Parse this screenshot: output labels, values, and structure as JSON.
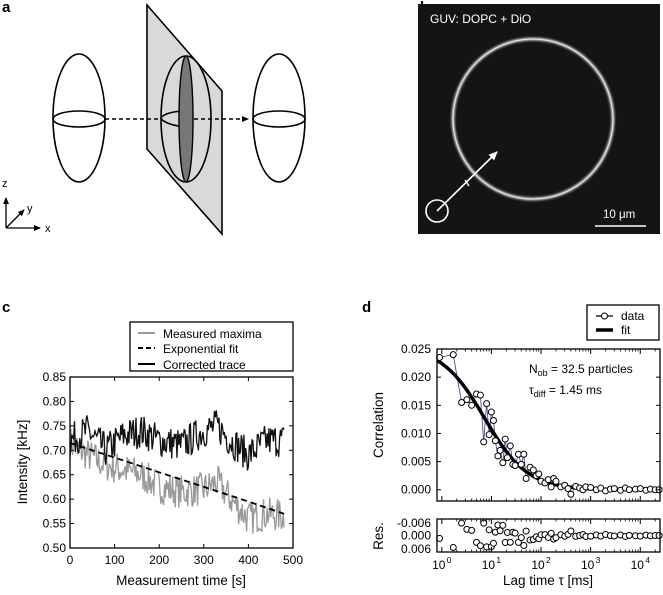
{
  "panels": {
    "a": {
      "label": "a",
      "axes_labels": {
        "z": "z",
        "y": "y",
        "x": "x"
      }
    },
    "b": {
      "label": "b",
      "title": "GUV: DOPC + DiO",
      "scalebar": "10 μm"
    },
    "c": {
      "label": "c"
    },
    "d": {
      "label": "d"
    }
  },
  "chart_data": [
    {
      "id": "c",
      "type": "line",
      "xlabel": "Measurement time [s]",
      "ylabel": "Intensity [kHz]",
      "xlim": [
        0,
        500
      ],
      "ylim": [
        0.5,
        0.85
      ],
      "xticks": [
        0,
        100,
        200,
        300,
        400,
        500
      ],
      "yticks": [
        0.5,
        0.55,
        0.6,
        0.65,
        0.7,
        0.75,
        0.8,
        0.85
      ],
      "xtick_labels": [
        "0",
        "100",
        "200",
        "300",
        "400",
        "500"
      ],
      "ytick_labels": [
        "0.50",
        "0.55",
        "0.60",
        "0.65",
        "0.70",
        "0.75",
        "0.80",
        "0.85"
      ],
      "legend": {
        "placement": "top-right",
        "entries": [
          "Measured maxima",
          "Exponential fit",
          "Corrected trace"
        ]
      },
      "series": [
        {
          "name": "Corrected trace",
          "color": "#111111",
          "style": "solid",
          "mean": 0.725,
          "noise": 0.035,
          "x_range": [
            0,
            480
          ],
          "anchors": [
            [
              0,
              0.72
            ],
            [
              40,
              0.74
            ],
            [
              80,
              0.7
            ],
            [
              120,
              0.73
            ],
            [
              160,
              0.74
            ],
            [
              200,
              0.72
            ],
            [
              250,
              0.71
            ],
            [
              300,
              0.74
            ],
            [
              330,
              0.75
            ],
            [
              360,
              0.72
            ],
            [
              400,
              0.69
            ],
            [
              440,
              0.72
            ],
            [
              480,
              0.72
            ]
          ]
        },
        {
          "name": "Measured maxima",
          "color": "#999999",
          "style": "solid",
          "noise": 0.035,
          "x_range": [
            0,
            480
          ],
          "anchors": [
            [
              0,
              0.715
            ],
            [
              40,
              0.69
            ],
            [
              80,
              0.67
            ],
            [
              120,
              0.66
            ],
            [
              160,
              0.65
            ],
            [
              200,
              0.625
            ],
            [
              250,
              0.615
            ],
            [
              300,
              0.62
            ],
            [
              330,
              0.635
            ],
            [
              360,
              0.6
            ],
            [
              400,
              0.56
            ],
            [
              440,
              0.57
            ],
            [
              480,
              0.565
            ]
          ]
        },
        {
          "name": "Exponential fit",
          "color": "#000000",
          "style": "dashed",
          "x": [
            0,
            100,
            200,
            300,
            400,
            480
          ],
          "y": [
            0.715,
            0.685,
            0.655,
            0.625,
            0.595,
            0.57
          ]
        }
      ]
    },
    {
      "id": "d",
      "type": "scatter",
      "xscale": "log",
      "xlabel": "Lag time τ [ms]",
      "ylabel": "Correlation",
      "xlim": [
        0.8,
        25000
      ],
      "ylim": [
        -0.002,
        0.025
      ],
      "yticks": [
        0.0,
        0.005,
        0.01,
        0.015,
        0.02,
        0.025
      ],
      "ytick_labels": [
        "0.000",
        "0.005",
        "0.010",
        "0.015",
        "0.020",
        "0.025"
      ],
      "xtick_labels": [
        "10^0",
        "10^1",
        "10^2",
        "10^3",
        "10^4"
      ],
      "annotations": [
        "N_ob = 32.5 particles",
        "τ_diff = 1.45 ms"
      ],
      "legend": {
        "placement": "top-right",
        "entries": [
          "data",
          "fit"
        ]
      },
      "fit": {
        "G0": 0.0255,
        "tau_diff_ms": 1.45,
        "particles": 32.5
      },
      "data": {
        "x": [
          0.9,
          1.7,
          2.5,
          3.2,
          4.0,
          5.0,
          6.0,
          7.0,
          8.0,
          9.0,
          10.0,
          11.0,
          12.0,
          13.5,
          15.0,
          17.0,
          19.0,
          21.0,
          24.0,
          27.0,
          30.0,
          35.0,
          40.0,
          45.0,
          50.0,
          60.0,
          70.0,
          80.0,
          90.0,
          100,
          120,
          140,
          160,
          180,
          200,
          250,
          300,
          350,
          400,
          500,
          600,
          700,
          800,
          1000,
          1300,
          1600,
          2000,
          2500,
          3000,
          4000,
          5000,
          6000,
          8000,
          10000,
          13000,
          16000,
          20000,
          24000
        ],
        "y": [
          0.0235,
          0.024,
          0.0155,
          0.016,
          0.015,
          0.017,
          0.0168,
          0.0085,
          0.0153,
          0.0098,
          0.0138,
          0.0123,
          0.0087,
          0.006,
          0.007,
          0.0048,
          0.009,
          0.0057,
          0.0078,
          0.0045,
          0.0043,
          0.0063,
          0.0045,
          0.0063,
          0.002,
          0.004,
          0.0035,
          0.0025,
          0.0028,
          0.0015,
          0.0012,
          0.0018,
          0.0005,
          0.002,
          0.0015,
          0.0005,
          0.0008,
          0.0002,
          -0.0008,
          0.0006,
          0.0003,
          0.0,
          0.0005,
          0.0004,
          0.0,
          0.0003,
          -0.0002,
          0.0001,
          0.0002,
          -0.0001,
          0.0003,
          0.0,
          0.0001,
          0.0002,
          -0.0001,
          0.0001,
          0.0,
          0.0
        ]
      },
      "residuals": {
        "ylabel": "Res.",
        "ylim": [
          -0.006,
          0.006
        ],
        "ytick_labels": [
          "-0.006",
          "0.000",
          "0.006"
        ]
      }
    }
  ]
}
